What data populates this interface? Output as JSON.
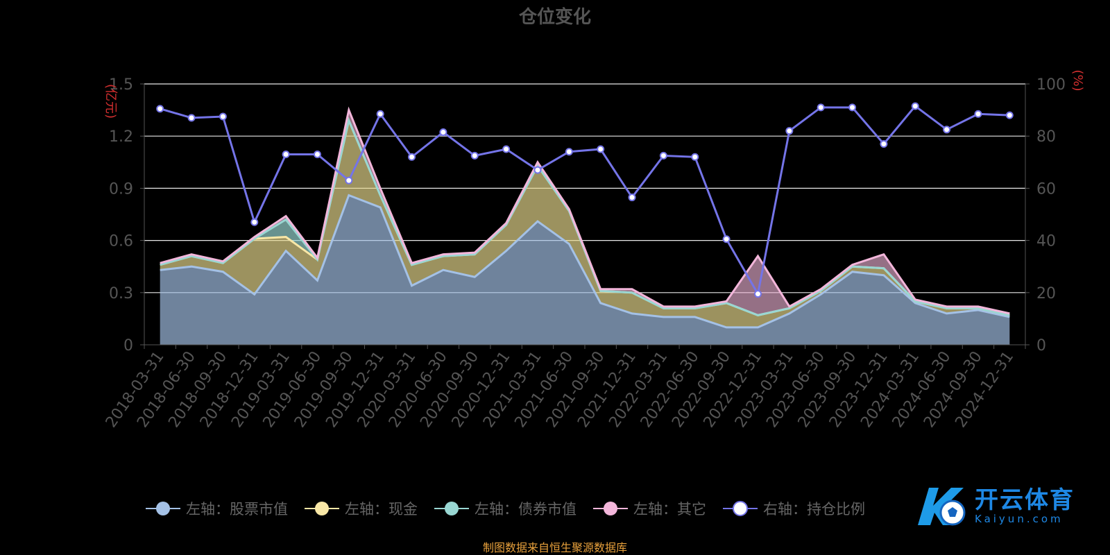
{
  "title": "仓位变化",
  "source_note": "制图数据来自恒生聚源数据库",
  "watermark": {
    "text": "开云体育",
    "subtext": "Kaiyun.com",
    "icon": "soccer-ball-k-logo-icon"
  },
  "chart_data": {
    "type": "area",
    "title": "仓位变化",
    "categories": [
      "2018-03-31",
      "2018-06-30",
      "2018-09-30",
      "2018-12-31",
      "2019-03-31",
      "2019-06-30",
      "2019-09-30",
      "2019-12-31",
      "2020-03-31",
      "2020-06-30",
      "2020-09-30",
      "2020-12-31",
      "2021-03-31",
      "2021-06-30",
      "2021-09-30",
      "2021-12-31",
      "2022-03-31",
      "2022-06-30",
      "2022-09-30",
      "2022-12-31",
      "2023-03-31",
      "2023-06-30",
      "2023-09-30",
      "2023-12-31",
      "2024-03-31",
      "2024-06-30",
      "2024-09-30",
      "2024-12-31"
    ],
    "y_left": {
      "label": "(亿元)",
      "ylim": [
        0,
        1.5
      ],
      "ticks": [
        "0",
        "0.3",
        "0.6",
        "0.9",
        "1.2",
        "1.5"
      ]
    },
    "y_right": {
      "label": "(%)",
      "ylim": [
        0,
        100
      ],
      "ticks": [
        "0",
        "20",
        "40",
        "60",
        "80",
        "100"
      ]
    },
    "grid": true,
    "legend_position": "bottom",
    "series": [
      {
        "name": "左轴：股票市值",
        "axis": "left",
        "stacked": true,
        "color": "#a4c1e6",
        "values": [
          0.43,
          0.45,
          0.42,
          0.29,
          0.54,
          0.37,
          0.86,
          0.79,
          0.34,
          0.43,
          0.39,
          0.54,
          0.71,
          0.58,
          0.24,
          0.18,
          0.16,
          0.16,
          0.1,
          0.1,
          0.18,
          0.29,
          0.42,
          0.4,
          0.24,
          0.18,
          0.2,
          0.16
        ]
      },
      {
        "name": "左轴：现金",
        "axis": "left",
        "stacked": true,
        "color": "#f8e7a6",
        "values": [
          0.03,
          0.06,
          0.05,
          0.32,
          0.08,
          0.12,
          0.43,
          0.07,
          0.12,
          0.08,
          0.13,
          0.15,
          0.32,
          0.19,
          0.07,
          0.12,
          0.05,
          0.05,
          0.14,
          0.07,
          0.03,
          0.02,
          0.03,
          0.04,
          0.01,
          0.03,
          0.01,
          0.01
        ]
      },
      {
        "name": "左轴：债券市值",
        "axis": "left",
        "stacked": true,
        "color": "#99d7d3",
        "values": [
          0,
          0,
          0,
          0,
          0.1,
          0,
          0,
          0,
          0,
          0,
          0,
          0,
          0,
          0,
          0,
          0,
          0,
          0,
          0,
          0,
          0,
          0,
          0,
          0,
          0,
          0,
          0,
          0
        ]
      },
      {
        "name": "左轴：其它",
        "axis": "left",
        "stacked": true,
        "color": "#f3b6da",
        "values": [
          0.01,
          0.01,
          0.01,
          0.01,
          0.02,
          0.01,
          0.06,
          0.04,
          0.01,
          0.01,
          0.01,
          0.01,
          0.02,
          0.01,
          0.01,
          0.02,
          0.01,
          0.01,
          0.01,
          0.34,
          0.01,
          0.01,
          0.01,
          0.08,
          0.01,
          0.01,
          0.01,
          0.01
        ]
      },
      {
        "name": "右轴：持仓比例",
        "axis": "right",
        "type": "line",
        "color": "#7474e8",
        "values": [
          90.5,
          87,
          87.5,
          47,
          73,
          73,
          63,
          88.5,
          72,
          81.5,
          72.5,
          75,
          67,
          74,
          75,
          56.5,
          72.5,
          72,
          40.5,
          19.5,
          82,
          91,
          91,
          77,
          91.5,
          82.5,
          88.5,
          88
        ]
      }
    ]
  }
}
